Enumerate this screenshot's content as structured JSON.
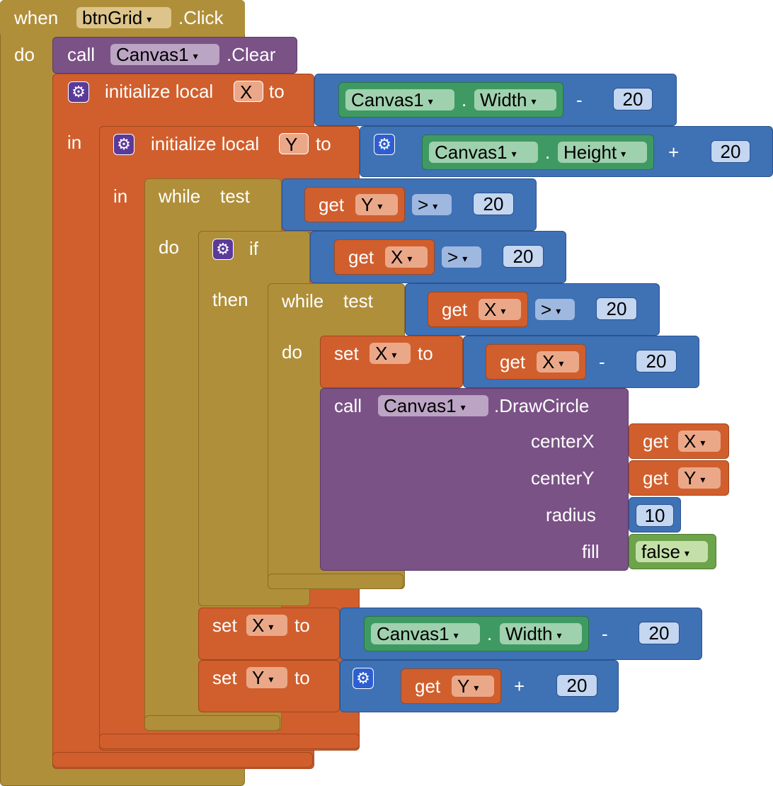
{
  "event": {
    "when": "when",
    "component": "btnGrid",
    "event": ".Click",
    "do": "do"
  },
  "clear": {
    "call": "call",
    "component": "Canvas1",
    "method": ".Clear"
  },
  "initX": {
    "label": "initialize local",
    "var": "X",
    "to": "to",
    "in": "in",
    "component": "Canvas1",
    "dot": ".",
    "prop": "Width",
    "op": "-",
    "num": "20"
  },
  "initY": {
    "label": "initialize local",
    "var": "Y",
    "to": "to",
    "in": "in",
    "component": "Canvas1",
    "dot": ".",
    "prop": "Height",
    "op": "+",
    "num": "20"
  },
  "while1": {
    "while": "while",
    "test": "test",
    "do": "do",
    "get": "get",
    "var": "Y",
    "op": ">",
    "num": "20"
  },
  "if1": {
    "if": "if",
    "then": "then",
    "get": "get",
    "var": "X",
    "op": ">",
    "num": "20"
  },
  "while2": {
    "while": "while",
    "test": "test",
    "do": "do",
    "get": "get",
    "var": "X",
    "op": ">",
    "num": "20"
  },
  "setX1": {
    "set": "set",
    "var": "X",
    "to": "to",
    "get": "get",
    "getvar": "X",
    "op": "-",
    "num": "20"
  },
  "draw": {
    "call": "call",
    "component": "Canvas1",
    "method": ".DrawCircle",
    "centerX": "centerX",
    "centerY": "centerY",
    "radius": "radius",
    "fill": "fill",
    "get": "get",
    "cx": "X",
    "cy": "Y",
    "r": "10",
    "fillval": "false"
  },
  "setX2": {
    "set": "set",
    "var": "X",
    "to": "to",
    "component": "Canvas1",
    "dot": ".",
    "prop": "Width",
    "op": "-",
    "num": "20"
  },
  "setY": {
    "set": "set",
    "var": "Y",
    "to": "to",
    "get": "get",
    "getvar": "Y",
    "op": "+",
    "num": "20"
  },
  "arrow": "▾",
  "gear": "⚙"
}
